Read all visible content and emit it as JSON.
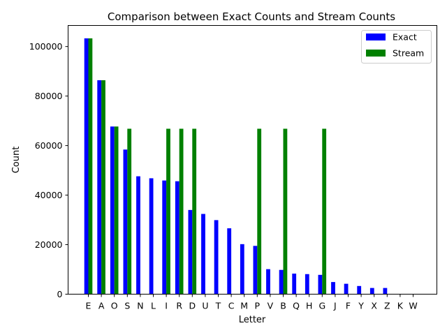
{
  "chart_data": {
    "type": "bar",
    "title": "Comparison between Exact Counts and Stream Counts",
    "xlabel": "Letter",
    "ylabel": "Count",
    "ylim": [
      0,
      108500
    ],
    "yticks": [
      0,
      20000,
      40000,
      60000,
      80000,
      100000
    ],
    "grid": false,
    "legend_position": "top-right",
    "categories": [
      "E",
      "A",
      "O",
      "S",
      "N",
      "L",
      "I",
      "R",
      "D",
      "U",
      "T",
      "C",
      "M",
      "P",
      "V",
      "B",
      "Q",
      "H",
      "G",
      "J",
      "F",
      "Y",
      "X",
      "Z",
      "K",
      "W"
    ],
    "series": [
      {
        "name": "Exact",
        "color": "#0000ff",
        "values": [
          103300,
          86400,
          67700,
          58400,
          47600,
          46800,
          45900,
          45600,
          34000,
          32400,
          29900,
          26600,
          20200,
          19500,
          10100,
          9800,
          8300,
          8100,
          7800,
          4900,
          4200,
          3300,
          2500,
          2500,
          0,
          0
        ]
      },
      {
        "name": "Stream",
        "color": "#008000",
        "values": [
          103300,
          86400,
          67700,
          66800,
          0,
          0,
          66800,
          66800,
          66800,
          0,
          0,
          0,
          0,
          66800,
          0,
          66800,
          0,
          0,
          66800,
          0,
          0,
          0,
          0,
          0,
          0,
          0
        ]
      }
    ]
  }
}
